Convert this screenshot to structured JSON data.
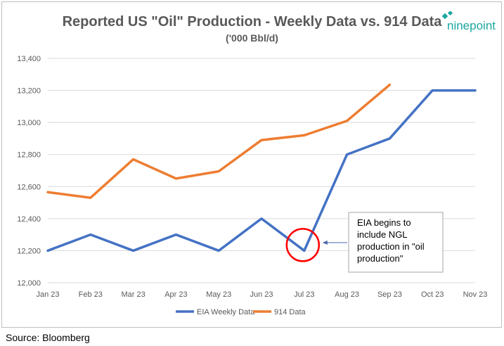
{
  "chart_data": {
    "type": "line",
    "title": "Reported US \"Oil\" Production - Weekly Data vs. 914 Data",
    "subtitle": "('000 Bbl/d)",
    "categories": [
      "Jan 23",
      "Feb 23",
      "Mar 23",
      "Apr 23",
      "May 23",
      "Jun 23",
      "Jul 23",
      "Aug 23",
      "Sep 23",
      "Oct 23",
      "Nov 23"
    ],
    "ylim": [
      12000,
      13400
    ],
    "yticks": [
      12000,
      12200,
      12400,
      12600,
      12800,
      13000,
      13200,
      13400
    ],
    "ytick_labels": [
      "12,000",
      "12,200",
      "12,400",
      "12,600",
      "12,800",
      "13,000",
      "13,200",
      "13,400"
    ],
    "grid": true,
    "legend_position": "bottom",
    "series": [
      {
        "name": "EIA Weekly Data",
        "color": "#4472c4",
        "values": [
          12200,
          12300,
          12200,
          12300,
          12200,
          12400,
          12200,
          12800,
          12900,
          13200,
          13200
        ]
      },
      {
        "name": "914 Data",
        "color": "#ed7d31",
        "values": [
          12565,
          12530,
          12770,
          12650,
          12695,
          12890,
          12920,
          13010,
          13235,
          null,
          null
        ]
      }
    ],
    "annotation": {
      "lines": [
        "EIA begins to",
        "include NGL",
        "production in \"oil",
        "production\""
      ],
      "target_category": "Jul 23",
      "target_value": 12200,
      "circle_color": "#ff0000"
    }
  },
  "logo": {
    "text": "ninepoint",
    "color": "#1aa6a0"
  },
  "source": "Source: Bloomberg"
}
